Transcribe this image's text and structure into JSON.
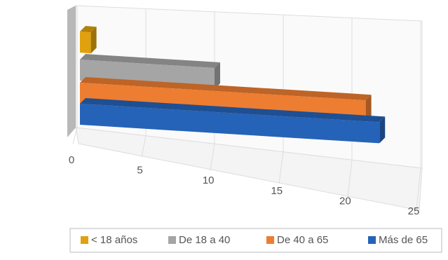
{
  "chart_data": {
    "type": "bar3d",
    "categories": [
      ""
    ],
    "series": [
      {
        "name": "< 18 años",
        "color": "#e0a10e",
        "values": [
          1
        ]
      },
      {
        "name": "De 18 a 40",
        "color": "#a5a5a5",
        "values": [
          10
        ]
      },
      {
        "name": "De 40 a 65",
        "color": "#ed7d31",
        "values": [
          21
        ]
      },
      {
        "name": "Más de 65",
        "color": "#2563b8",
        "values": [
          22
        ]
      }
    ],
    "xlim": [
      0,
      25
    ],
    "xticks": [
      0,
      5,
      10,
      15,
      20,
      25
    ],
    "grid": true,
    "legend": "bottom"
  }
}
